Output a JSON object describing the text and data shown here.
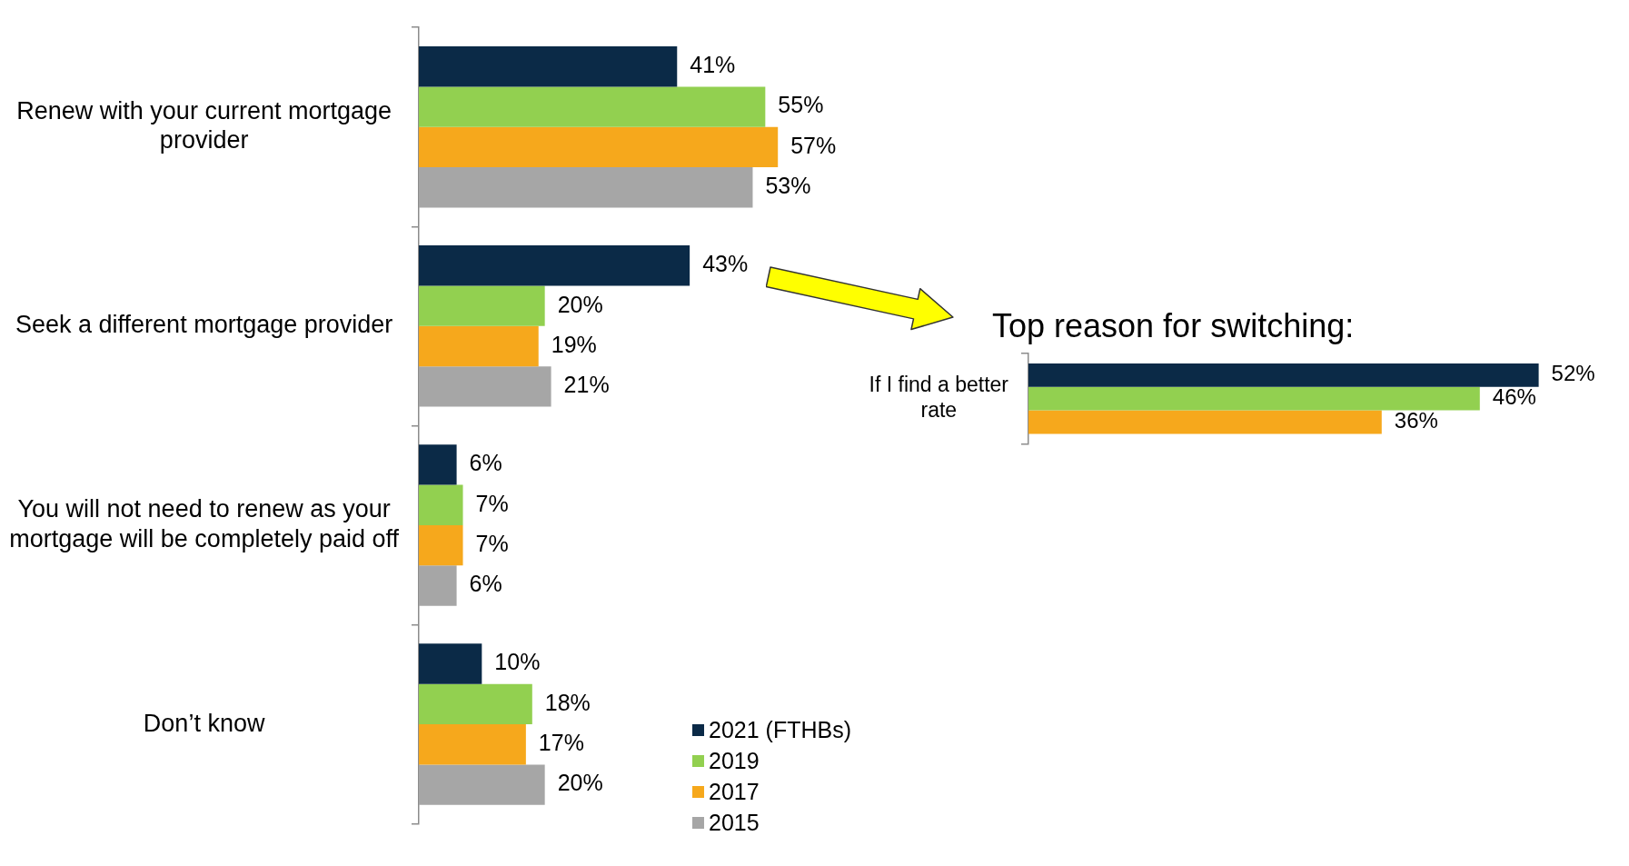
{
  "chart_data": [
    {
      "type": "bar",
      "orientation": "horizontal",
      "categories": [
        "Renew with your current mortgage provider",
        "Seek a different mortgage provider",
        "You will not need to renew as your mortgage will be completely paid off",
        "Don’t know"
      ],
      "tick_labels": "y",
      "grid": false,
      "legend": "bottom",
      "series": [
        {
          "name": "2021 (FTHBs)",
          "color": "#0b2a47",
          "values": [
            41,
            43,
            6,
            10
          ],
          "value_labels": [
            "41%",
            "43%",
            "6%",
            "10%"
          ]
        },
        {
          "name": "2019",
          "color": "#92d050",
          "values": [
            55,
            20,
            7,
            18
          ],
          "value_labels": [
            "55%",
            "20%",
            "7%",
            "18%"
          ]
        },
        {
          "name": "2017",
          "color": "#f6a81c",
          "values": [
            57,
            19,
            7,
            17
          ],
          "value_labels": [
            "57%",
            "19%",
            "7%",
            "17%"
          ]
        },
        {
          "name": "2015",
          "color": "#a6a6a6",
          "values": [
            53,
            21,
            6,
            20
          ],
          "value_labels": [
            "53%",
            "21%",
            "6%",
            "20%"
          ]
        }
      ]
    },
    {
      "type": "bar",
      "orientation": "horizontal",
      "title": "Top reason for switching:",
      "categories": [
        "If I find a better rate"
      ],
      "tick_labels": "y",
      "grid": false,
      "series": [
        {
          "color": "#0b2a47",
          "values": [
            52
          ],
          "value_labels": [
            "52%"
          ]
        },
        {
          "color": "#92d050",
          "values": [
            46
          ],
          "value_labels": [
            "46%"
          ]
        },
        {
          "color": "#f6a81c",
          "values": [
            36
          ],
          "value_labels": [
            "36%"
          ]
        }
      ]
    }
  ]
}
